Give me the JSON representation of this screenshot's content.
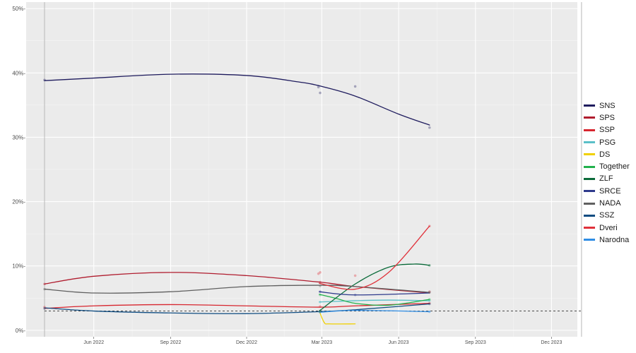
{
  "chart_data": {
    "type": "line",
    "title": "",
    "xlabel": "",
    "ylabel": "",
    "x_axis": {
      "type": "date",
      "range": [
        "2022-03-12",
        "2024-01-01"
      ],
      "ticks": [
        {
          "date": "2022-06-01",
          "label": "Jun 2022"
        },
        {
          "date": "2022-09-01",
          "label": "Sep 2022"
        },
        {
          "date": "2022-12-01",
          "label": "Dec 2022"
        },
        {
          "date": "2023-03-01",
          "label": "Mar 2023"
        },
        {
          "date": "2023-06-01",
          "label": "Jun 2023"
        },
        {
          "date": "2023-09-01",
          "label": "Sep 2023"
        },
        {
          "date": "2023-12-01",
          "label": "Dec 2023"
        }
      ]
    },
    "y_axis": {
      "range": [
        -1,
        51
      ],
      "unit": "%",
      "ticks": [
        {
          "value": 0,
          "label": "0%-"
        },
        {
          "value": 10,
          "label": "10%-"
        },
        {
          "value": 20,
          "label": "20%-"
        },
        {
          "value": 30,
          "label": "30%-"
        },
        {
          "value": 40,
          "label": "40%-"
        },
        {
          "value": 50,
          "label": "50%-"
        }
      ]
    },
    "grid": true,
    "legend": "right",
    "reference_lines": {
      "vertical": [
        "2022-04-03",
        "2024-01-06"
      ],
      "threshold": {
        "value": 3,
        "style": "dashed",
        "color": "#333333"
      }
    },
    "series": [
      {
        "name": "SNS",
        "color": "#1f1c5e",
        "curve": [
          [
            "2022-04-03",
            38.8
          ],
          [
            "2022-06-01",
            39.2
          ],
          [
            "2022-09-01",
            39.8
          ],
          [
            "2022-12-01",
            39.6
          ],
          [
            "2023-02-01",
            38.6
          ],
          [
            "2023-03-01",
            37.9
          ],
          [
            "2023-04-10",
            36.4
          ],
          [
            "2023-06-01",
            33.6
          ],
          [
            "2023-07-08",
            31.9
          ]
        ],
        "points": [
          [
            "2022-04-03",
            38.9
          ],
          [
            "2023-02-25",
            37.8
          ],
          [
            "2023-02-27",
            36.9
          ],
          [
            "2023-04-10",
            37.9
          ],
          [
            "2023-07-08",
            31.5
          ]
        ]
      },
      {
        "name": "SPS",
        "color": "#b01c2e",
        "curve": [
          [
            "2022-04-03",
            7.2
          ],
          [
            "2022-06-01",
            8.4
          ],
          [
            "2022-09-01",
            9.0
          ],
          [
            "2022-12-01",
            8.5
          ],
          [
            "2023-02-26",
            7.5
          ],
          [
            "2023-04-10",
            6.8
          ],
          [
            "2023-07-08",
            5.8
          ]
        ],
        "points": [
          [
            "2022-04-03",
            7.2
          ],
          [
            "2023-02-27",
            7.5
          ],
          [
            "2023-07-08",
            6.0
          ]
        ]
      },
      {
        "name": "SSP",
        "color": "#d7262f",
        "curve": [
          [
            "2022-04-03",
            3.4
          ],
          [
            "2022-06-01",
            3.8
          ],
          [
            "2022-09-01",
            4.0
          ],
          [
            "2022-12-01",
            3.8
          ],
          [
            "2023-02-26",
            3.6
          ],
          [
            "2023-04-10",
            3.8
          ],
          [
            "2023-07-08",
            4.2
          ]
        ],
        "points": [
          [
            "2022-04-03",
            3.6
          ],
          [
            "2023-02-27",
            3.7
          ],
          [
            "2023-07-08",
            4.2
          ]
        ]
      },
      {
        "name": "PSG",
        "color": "#5bc0c8",
        "curve": [
          [
            "2023-02-26",
            4.4
          ],
          [
            "2023-04-10",
            4.6
          ],
          [
            "2023-05-20",
            4.7
          ],
          [
            "2023-07-08",
            4.6
          ]
        ],
        "points": [
          [
            "2023-02-27",
            4.4
          ],
          [
            "2023-07-08",
            4.6
          ]
        ]
      },
      {
        "name": "DS",
        "color": "#f0d000",
        "curve": [
          [
            "2023-02-26",
            3.0
          ],
          [
            "2023-03-04",
            1.2
          ],
          [
            "2023-03-10",
            1.0
          ],
          [
            "2023-04-10",
            1.0
          ]
        ],
        "points": [
          [
            "2023-02-27",
            2.9
          ]
        ]
      },
      {
        "name": "Together",
        "color": "#22b14c",
        "curve": [
          [
            "2023-02-26",
            5.6
          ],
          [
            "2023-03-20",
            4.9
          ],
          [
            "2023-04-10",
            4.2
          ],
          [
            "2023-05-20",
            3.9
          ],
          [
            "2023-07-08",
            4.8
          ]
        ],
        "points": [
          [
            "2023-02-27",
            5.5
          ],
          [
            "2023-07-08",
            4.8
          ]
        ]
      },
      {
        "name": "ZLF",
        "color": "#0b6b3a",
        "curve": [
          [
            "2023-02-26",
            3.0
          ],
          [
            "2023-04-10",
            7.2
          ],
          [
            "2023-05-20",
            9.8
          ],
          [
            "2023-06-20",
            10.3
          ],
          [
            "2023-07-08",
            10.1
          ]
        ],
        "points": [
          [
            "2023-02-27",
            3.0
          ],
          [
            "2023-07-08",
            10.1
          ]
        ]
      },
      {
        "name": "SRCE",
        "color": "#2e3a8c",
        "curve": [
          [
            "2023-02-26",
            6.0
          ],
          [
            "2023-04-10",
            5.5
          ],
          [
            "2023-07-08",
            5.8
          ]
        ],
        "points": [
          [
            "2023-02-27",
            6.0
          ],
          [
            "2023-04-10",
            5.5
          ]
        ]
      },
      {
        "name": "NADA",
        "color": "#5f5f5f",
        "curve": [
          [
            "2022-04-03",
            6.4
          ],
          [
            "2022-06-01",
            5.8
          ],
          [
            "2022-09-01",
            6.0
          ],
          [
            "2022-12-01",
            6.8
          ],
          [
            "2023-02-26",
            7.0
          ],
          [
            "2023-04-10",
            6.8
          ],
          [
            "2023-07-08",
            5.9
          ]
        ],
        "points": [
          [
            "2022-04-03",
            6.4
          ],
          [
            "2023-02-27",
            6.9
          ],
          [
            "2023-07-08",
            5.9
          ]
        ]
      },
      {
        "name": "SSZ",
        "color": "#0f4c81",
        "curve": [
          [
            "2022-04-03",
            3.5
          ],
          [
            "2022-06-01",
            3.0
          ],
          [
            "2022-09-01",
            2.7
          ],
          [
            "2022-12-01",
            2.6
          ],
          [
            "2023-02-26",
            2.9
          ],
          [
            "2023-04-10",
            3.2
          ],
          [
            "2023-07-08",
            4.1
          ]
        ],
        "points": [
          [
            "2022-04-03",
            3.4
          ],
          [
            "2023-02-27",
            3.0
          ],
          [
            "2023-07-08",
            4.1
          ]
        ]
      },
      {
        "name": "Dveri",
        "color": "#e0313a",
        "curve": [
          [
            "2023-02-26",
            7.3
          ],
          [
            "2023-04-10",
            6.4
          ],
          [
            "2023-05-20",
            9.0
          ],
          [
            "2023-07-08",
            16.2
          ]
        ],
        "points": [
          [
            "2023-02-25",
            8.8
          ],
          [
            "2023-02-27",
            9.0
          ],
          [
            "2023-04-10",
            8.5
          ],
          [
            "2023-07-08",
            16.2
          ]
        ]
      },
      {
        "name": "Narodna",
        "color": "#2f8de4",
        "curve": [
          [
            "2023-02-26",
            2.8
          ],
          [
            "2023-04-10",
            3.1
          ],
          [
            "2023-07-08",
            2.9
          ]
        ],
        "points": [
          [
            "2023-02-27",
            2.8
          ],
          [
            "2023-07-08",
            2.9
          ]
        ]
      }
    ]
  }
}
